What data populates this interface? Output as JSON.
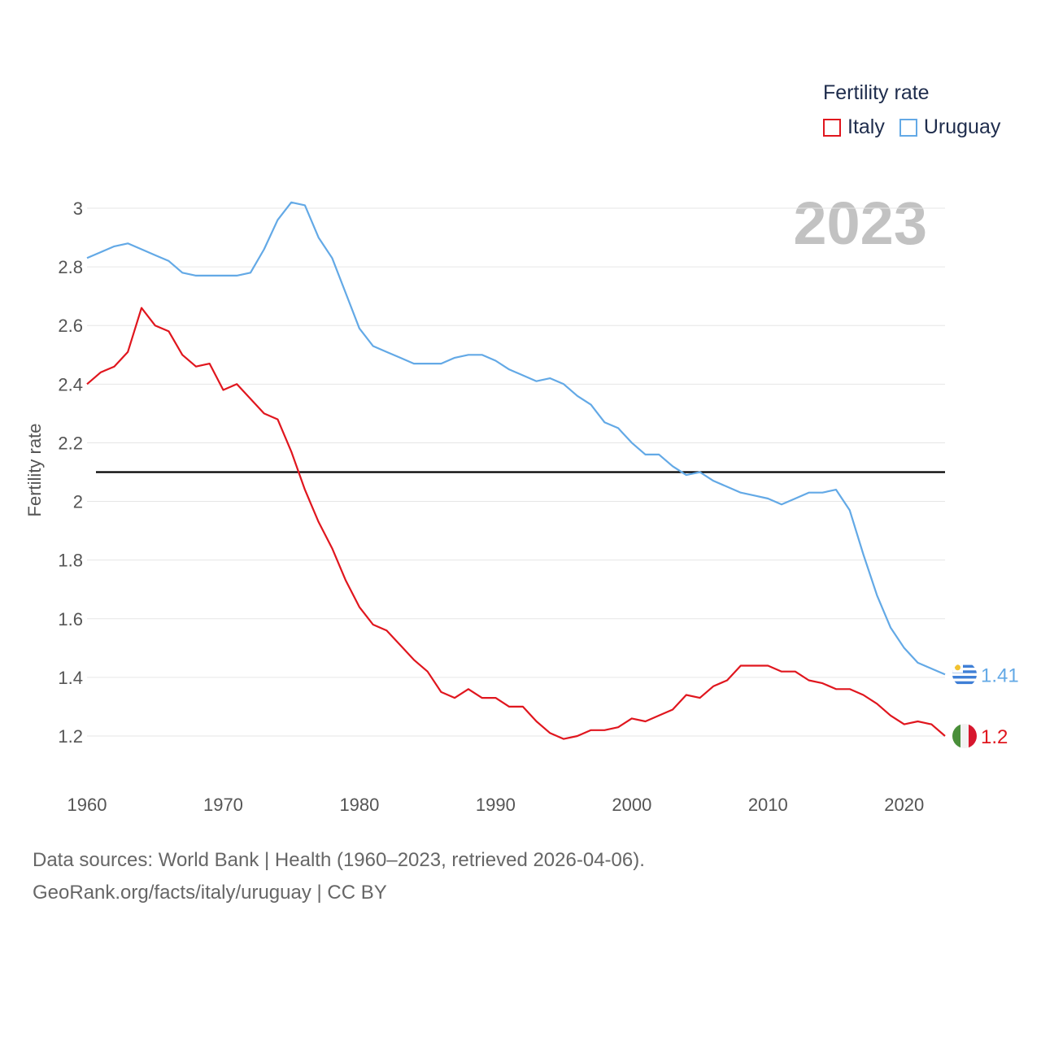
{
  "legend": {
    "title": "Fertility rate",
    "items": [
      {
        "name": "Italy",
        "color": "#e0161e"
      },
      {
        "name": "Uruguay",
        "color": "#63a9e6"
      }
    ]
  },
  "current_year": "2023",
  "footer": {
    "line1": "Data sources: World Bank | Health (1960–2023, retrieved 2026-04-06).",
    "line2": "GeoRank.org/facts/italy/uruguay | CC BY"
  },
  "chart_data": {
    "type": "line",
    "title": "Fertility rate",
    "xlabel": "",
    "ylabel": "Fertility rate",
    "xlim": [
      1960,
      2023
    ],
    "ylim": [
      1.1,
      3.0
    ],
    "x_ticks": [
      1960,
      1970,
      1980,
      1990,
      2000,
      2010,
      2020
    ],
    "y_ticks": [
      "1.2",
      "1.4",
      "1.6",
      "1.8",
      "2",
      "2.2",
      "2.4",
      "2.6",
      "2.8",
      "3"
    ],
    "reference_line": {
      "y": 2.1,
      "color": "#000000"
    },
    "x": [
      1960,
      1961,
      1962,
      1963,
      1964,
      1965,
      1966,
      1967,
      1968,
      1969,
      1970,
      1971,
      1972,
      1973,
      1974,
      1975,
      1976,
      1977,
      1978,
      1979,
      1980,
      1981,
      1982,
      1983,
      1984,
      1985,
      1986,
      1987,
      1988,
      1989,
      1990,
      1991,
      1992,
      1993,
      1994,
      1995,
      1996,
      1997,
      1998,
      1999,
      2000,
      2001,
      2002,
      2003,
      2004,
      2005,
      2006,
      2007,
      2008,
      2009,
      2010,
      2011,
      2012,
      2013,
      2014,
      2015,
      2016,
      2017,
      2018,
      2019,
      2020,
      2021,
      2022,
      2023
    ],
    "series": [
      {
        "name": "Italy",
        "color": "#e0161e",
        "end_label": "1.2",
        "values": [
          2.4,
          2.44,
          2.46,
          2.51,
          2.66,
          2.6,
          2.58,
          2.5,
          2.46,
          2.47,
          2.38,
          2.4,
          2.35,
          2.3,
          2.28,
          2.17,
          2.04,
          1.93,
          1.84,
          1.73,
          1.64,
          1.58,
          1.56,
          1.51,
          1.46,
          1.42,
          1.35,
          1.33,
          1.36,
          1.33,
          1.33,
          1.3,
          1.3,
          1.25,
          1.21,
          1.19,
          1.2,
          1.22,
          1.22,
          1.23,
          1.26,
          1.25,
          1.27,
          1.29,
          1.34,
          1.33,
          1.37,
          1.39,
          1.44,
          1.44,
          1.44,
          1.42,
          1.42,
          1.39,
          1.38,
          1.36,
          1.36,
          1.34,
          1.31,
          1.27,
          1.24,
          1.25,
          1.24,
          1.2
        ]
      },
      {
        "name": "Uruguay",
        "color": "#63a9e6",
        "end_label": "1.41",
        "values": [
          2.83,
          2.85,
          2.87,
          2.88,
          2.86,
          2.84,
          2.82,
          2.78,
          2.77,
          2.77,
          2.77,
          2.77,
          2.78,
          2.86,
          2.96,
          3.02,
          3.01,
          2.9,
          2.83,
          2.71,
          2.59,
          2.53,
          2.51,
          2.49,
          2.47,
          2.47,
          2.47,
          2.49,
          2.5,
          2.5,
          2.48,
          2.45,
          2.43,
          2.41,
          2.42,
          2.4,
          2.36,
          2.33,
          2.27,
          2.25,
          2.2,
          2.16,
          2.16,
          2.12,
          2.09,
          2.1,
          2.07,
          2.05,
          2.03,
          2.02,
          2.01,
          1.99,
          2.01,
          2.03,
          2.03,
          2.04,
          1.97,
          1.82,
          1.68,
          1.57,
          1.5,
          1.45,
          1.43,
          1.41
        ]
      }
    ]
  }
}
